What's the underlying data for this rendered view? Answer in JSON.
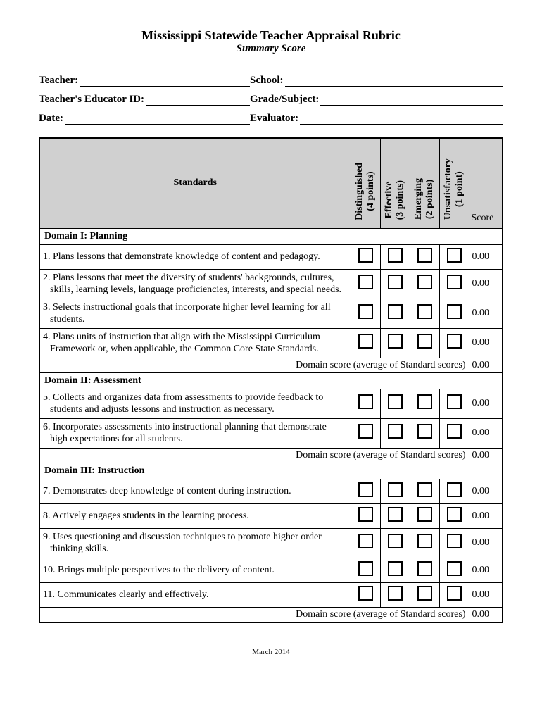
{
  "title": "Mississippi Statewide Teacher Appraisal Rubric",
  "subtitle": "Summary Score",
  "header": {
    "teacher": "Teacher:",
    "school": "School:",
    "educator_id": "Teacher's Educator ID:",
    "grade_subject": "Grade/Subject:",
    "date": "Date:",
    "evaluator": "Evaluator:"
  },
  "table": {
    "standards_label": "Standards",
    "score_label": "Score",
    "ratings": [
      {
        "name": "Distinguished",
        "points": "(4 points)"
      },
      {
        "name": "Effective",
        "points": "(3 points)"
      },
      {
        "name": "Emerging",
        "points": "(2 points)"
      },
      {
        "name": "Unsatisfactory",
        "points": "(1 point)"
      }
    ],
    "domain_score_label": "Domain score (average of Standard scores)",
    "domains": [
      {
        "title": "Domain I: Planning",
        "score": "0.00",
        "standards": [
          {
            "text": "1. Plans lessons that demonstrate knowledge of content and pedagogy.",
            "score": "0.00"
          },
          {
            "text": "2. Plans lessons that meet the diversity of students' backgrounds, cultures, skills, learning levels, language proficiencies, interests, and special needs.",
            "score": "0.00"
          },
          {
            "text": "3. Selects instructional goals that incorporate higher level learning for all students.",
            "score": "0.00"
          },
          {
            "text": "4. Plans units of instruction that align with the Mississippi Curriculum Framework or, when applicable, the Common Core State Standards.",
            "score": "0.00"
          }
        ]
      },
      {
        "title": "Domain II: Assessment",
        "score": "0.00",
        "standards": [
          {
            "text": "5. Collects and organizes data from assessments to provide feedback to students and adjusts lessons and instruction as necessary.",
            "score": "0.00"
          },
          {
            "text": "6. Incorporates assessments into instructional planning that demonstrate high expectations for all students.",
            "score": "0.00"
          }
        ]
      },
      {
        "title": "Domain III: Instruction",
        "score": "0.00",
        "standards": [
          {
            "text": "7. Demonstrates deep knowledge of content during instruction.",
            "score": "0.00"
          },
          {
            "text": "8. Actively engages students in the learning process.",
            "score": "0.00"
          },
          {
            "text": "9. Uses questioning and discussion techniques to promote higher order thinking skills.",
            "score": "0.00"
          },
          {
            "text": "10. Brings multiple perspectives to the delivery of content.",
            "score": "0.00"
          },
          {
            "text": "11. Communicates clearly and effectively.",
            "score": "0.00"
          }
        ]
      }
    ]
  },
  "footer_date": "March 2014",
  "colors": {
    "header_bg": "#d0d0d0",
    "border": "#000000",
    "text": "#000000",
    "page_bg": "#ffffff"
  }
}
